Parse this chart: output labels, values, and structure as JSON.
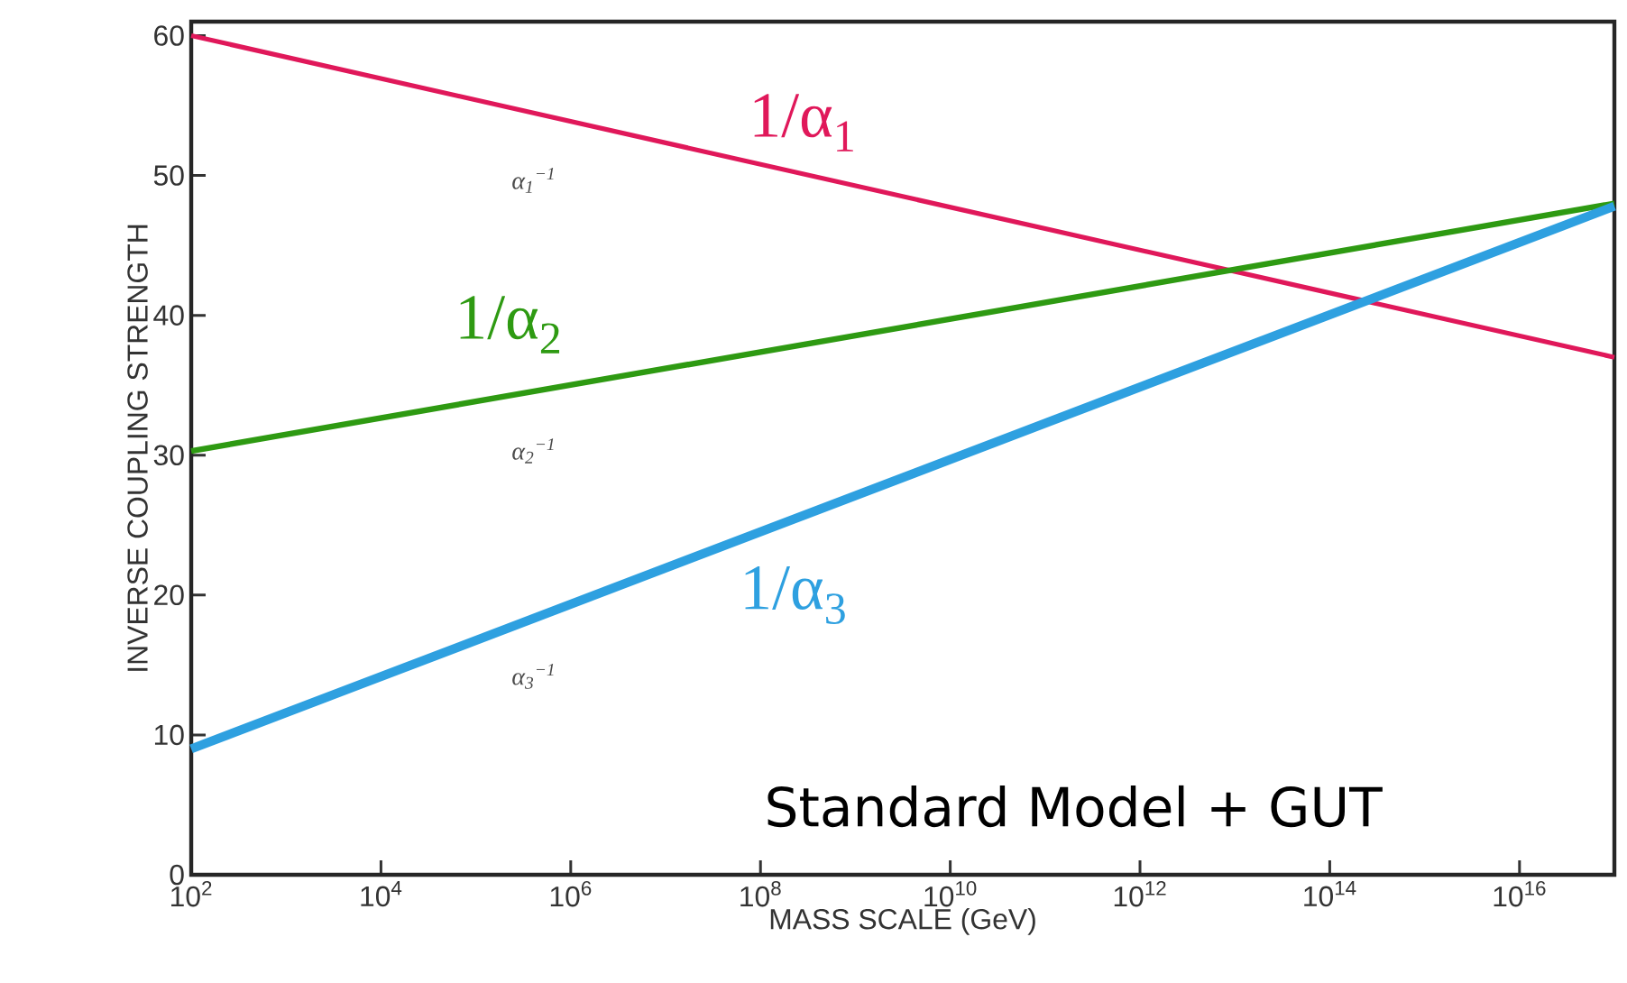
{
  "chart_data": {
    "type": "line",
    "xlabel": "MASS SCALE (GeV)",
    "ylabel": "INVERSE COUPLING STRENGTH",
    "log": "x",
    "x": [
      100,
      1e+17
    ],
    "xlim": [
      100,
      1e+17
    ],
    "xticks": [
      {
        "value": 100.0,
        "label": "10$^{2}$"
      },
      {
        "value": 10000.0,
        "label": "10$^{4}$"
      },
      {
        "value": 1000000.0,
        "label": "10$^{6}$"
      },
      {
        "value": 100000000.0,
        "label": "10$^{8}$"
      },
      {
        "value": 10000000000.0,
        "label": "10$^{10}$"
      },
      {
        "value": 1000000000000.0,
        "label": "10$^{12}$"
      },
      {
        "value": 100000000000000.0,
        "label": "10$^{14}$"
      },
      {
        "value": 1e+16,
        "label": "10$^{16}$"
      }
    ],
    "ylim": [
      0,
      61
    ],
    "yticks": [
      0,
      10,
      20,
      30,
      40,
      50,
      60
    ],
    "series": [
      {
        "name": "1/α$_{1}$",
        "color": "#e0185a",
        "values": [
          60,
          37
        ]
      },
      {
        "name": "1/α$_{2}$",
        "color": "#2e9a12",
        "values": [
          30.3,
          48
        ]
      },
      {
        "name": "1/α$_{3}$",
        "color": "#2ea0e0",
        "values": [
          9,
          47.8
        ]
      }
    ],
    "annotations": [
      "α$_{1}$$^{−1}$",
      "α$_{2}$$^{−1}$",
      "α$_{3}$$^{−1}$",
      "Standard Model + GUT"
    ]
  }
}
